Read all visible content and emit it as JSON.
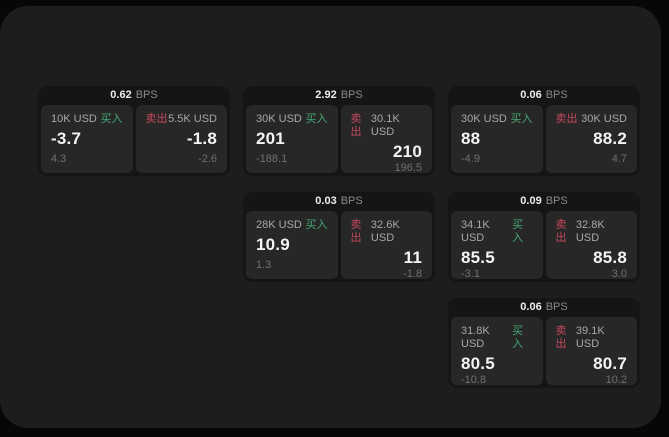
{
  "labels": {
    "buy": "买入",
    "sell": "卖出",
    "bps_unit": "BPS"
  },
  "colors": {
    "background": "#070707",
    "panel": "#1d1d1d",
    "card": "#151515",
    "tile": "#272727",
    "buy_green": "#46a873",
    "sell_red": "#c4485c"
  },
  "cards": [
    {
      "bps": "0.62",
      "buy": {
        "amount": "10K USD",
        "price": "-3.7",
        "delta": "4.3"
      },
      "sell": {
        "amount": "5.5K USD",
        "price": "-1.8",
        "delta": "-2.6"
      }
    },
    {
      "bps": "2.92",
      "buy": {
        "amount": "30K USD",
        "price": "201",
        "delta": "-188.1"
      },
      "sell": {
        "amount": "30.1K USD",
        "price": "210",
        "delta": "196.5"
      }
    },
    {
      "bps": "0.06",
      "buy": {
        "amount": "30K USD",
        "price": "88",
        "delta": "-4.9"
      },
      "sell": {
        "amount": "30K USD",
        "price": "88.2",
        "delta": "4.7"
      }
    },
    {
      "bps": "0.03",
      "buy": {
        "amount": "28K USD",
        "price": "10.9",
        "delta": "1.3"
      },
      "sell": {
        "amount": "32.6K USD",
        "price": "11",
        "delta": "-1.8"
      }
    },
    {
      "bps": "0.09",
      "buy": {
        "amount": "34.1K USD",
        "price": "85.5",
        "delta": "-3.1"
      },
      "sell": {
        "amount": "32.8K USD",
        "price": "85.8",
        "delta": "3.0"
      }
    },
    {
      "bps": "0.06",
      "buy": {
        "amount": "31.8K USD",
        "price": "80.5",
        "delta": "-10.8"
      },
      "sell": {
        "amount": "39.1K USD",
        "price": "80.7",
        "delta": "10.2"
      }
    }
  ]
}
